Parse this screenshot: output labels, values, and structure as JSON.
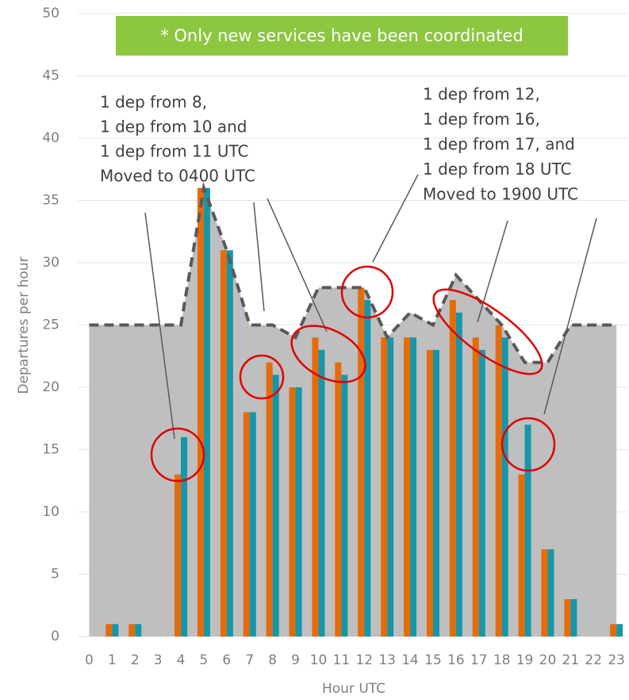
{
  "chart_data": {
    "type": "bar",
    "categories": [
      "0",
      "1",
      "2",
      "3",
      "4",
      "5",
      "6",
      "7",
      "8",
      "9",
      "10",
      "11",
      "12",
      "13",
      "14",
      "15",
      "16",
      "17",
      "18",
      "19",
      "20",
      "21",
      "22",
      "23"
    ],
    "series": [
      {
        "color": "#bfbfbf",
        "line_color": "#595959",
        "kind": "area-dashed",
        "values": [
          25,
          25,
          25,
          25,
          25,
          36,
          31,
          25,
          25,
          24,
          28,
          28,
          28,
          24,
          26,
          25,
          29,
          27,
          25,
          22,
          22,
          25,
          25,
          25
        ]
      },
      {
        "color": "#e46c0a",
        "kind": "bar",
        "values": [
          0,
          1,
          1,
          0,
          13,
          36,
          31,
          18,
          22,
          20,
          24,
          22,
          28,
          24,
          24,
          23,
          27,
          24,
          25,
          13,
          7,
          3,
          0,
          1
        ]
      },
      {
        "color": "#1796a8",
        "kind": "bar",
        "values": [
          0,
          1,
          1,
          0,
          16,
          36,
          31,
          18,
          21,
          20,
          23,
          21,
          27,
          24,
          24,
          23,
          26,
          23,
          24,
          17,
          7,
          3,
          0,
          1
        ]
      }
    ],
    "ylim": [
      0,
      50
    ],
    "yticks": [
      0,
      5,
      10,
      15,
      20,
      25,
      30,
      35,
      40,
      45,
      50
    ],
    "y_label": "Departures per hour",
    "x_label": "Hour UTC",
    "banner": "* Only new services have been coordinated",
    "annotation_left": [
      "1 dep from 8,",
      "1 dep from 10 and",
      "1 dep from 11 UTC",
      "Moved to 0400 UTC"
    ],
    "annotation_right": [
      "1 dep from 12,",
      "1 dep from 16,",
      "1 dep from 17, and",
      "1 dep from 18 UTC",
      "Moved to 1900 UTC"
    ],
    "grid": true
  }
}
